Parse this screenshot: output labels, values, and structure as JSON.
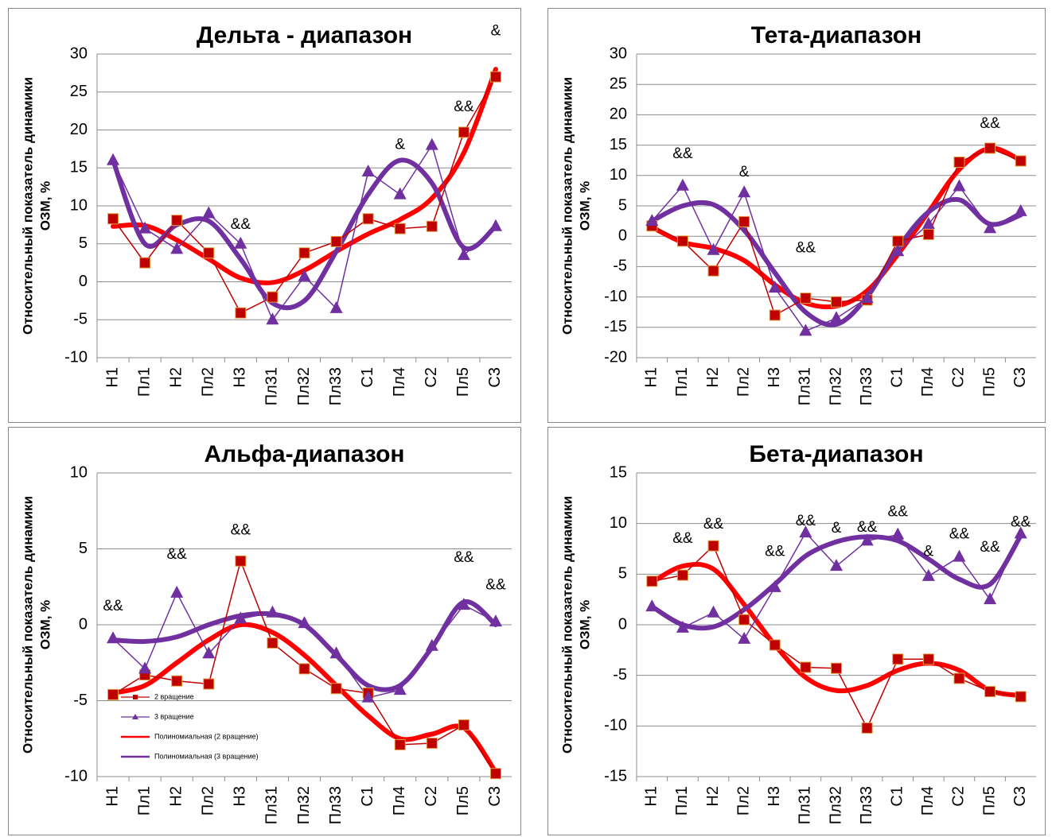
{
  "chart_data": [
    {
      "type": "line",
      "title": "Дельта - диапазон",
      "ylabel": [
        "Относительный показатель динамики",
        "ОЗМ, %"
      ],
      "categories": [
        "Н1",
        "Пл1",
        "Н2",
        "Пл2",
        "Н3",
        "Пл31",
        "Пл32",
        "Пл33",
        "С1",
        "Пл4",
        "С2",
        "Пл5",
        "С3"
      ],
      "ylim": [
        -10,
        30
      ],
      "yticks": [
        -10,
        -5,
        0,
        5,
        10,
        15,
        20,
        25,
        30
      ],
      "grid": true,
      "series": [
        {
          "name": "2 вращение",
          "color": "#c00000",
          "marker": "square",
          "smooth": false,
          "values": [
            8.3,
            2.5,
            8.1,
            3.8,
            -4.1,
            -2,
            3.8,
            5.3,
            8.3,
            7,
            7.3,
            19.7,
            27
          ]
        },
        {
          "name": "3 вращение",
          "color": "#7030a0",
          "marker": "triangle",
          "smooth": false,
          "values": [
            16,
            7,
            4.3,
            9,
            5,
            -5,
            0.7,
            -3.5,
            14.5,
            11.5,
            18,
            3.5,
            7.3
          ]
        },
        {
          "name": "Полиномиальная (2 вращение)",
          "color": "#ff0000",
          "marker": "none",
          "smooth": true,
          "values": [
            7.3,
            7.4,
            5.5,
            3,
            0.5,
            -0.1,
            1.5,
            4,
            6.3,
            8.2,
            11,
            17,
            28
          ]
        },
        {
          "name": "Полиномиальная (3 вращение)",
          "color": "#7030a0",
          "marker": "none",
          "smooth": true,
          "values": [
            16,
            5,
            7.5,
            8,
            3,
            -2.8,
            -2.5,
            4,
            11.5,
            16,
            13,
            4.5,
            7.3
          ]
        }
      ],
      "annotations": [
        {
          "text": "&",
          "category": "С3",
          "y": 33
        },
        {
          "text": "&&",
          "category": "Пл5",
          "y": 23
        },
        {
          "text": "&",
          "category": "Пл4",
          "y": 18
        },
        {
          "text": "&&",
          "category": "Н3",
          "y": 7.5
        }
      ],
      "legend": false
    },
    {
      "type": "line",
      "title": "Тета-диапазон",
      "ylabel": [
        "Относительный показатель динамики",
        "ОЗМ, %"
      ],
      "categories": [
        "Н1",
        "Пл1",
        "Н2",
        "Пл2",
        "Н3",
        "Пл31",
        "Пл32",
        "Пл33",
        "С1",
        "Пл4",
        "С2",
        "Пл5",
        "С3"
      ],
      "ylim": [
        -20,
        30
      ],
      "yticks": [
        -20,
        -15,
        -10,
        -5,
        0,
        5,
        10,
        15,
        20,
        25,
        30
      ],
      "grid": true,
      "series": [
        {
          "name": "2 вращение",
          "color": "#c00000",
          "marker": "square",
          "smooth": false,
          "values": [
            1.7,
            -0.8,
            -5.7,
            2.4,
            -13,
            -10.2,
            -10.8,
            -10.5,
            -0.8,
            0.3,
            12.2,
            14.5,
            12.4
          ]
        },
        {
          "name": "3 вращение",
          "color": "#7030a0",
          "marker": "triangle",
          "smooth": false,
          "values": [
            2.5,
            8.3,
            -2.3,
            7.2,
            -8.5,
            -15.6,
            -13.5,
            -10.2,
            -2.5,
            2,
            8.2,
            1.3,
            4.1
          ]
        },
        {
          "name": "Полиномиальная (2 вращение)",
          "color": "#ff0000",
          "marker": "none",
          "smooth": true,
          "values": [
            1.5,
            -1,
            -2,
            -4,
            -8,
            -11,
            -11.5,
            -9,
            -3,
            4,
            11,
            14.5,
            12.5
          ]
        },
        {
          "name": "Полиномиальная (3 вращение)",
          "color": "#7030a0",
          "marker": "none",
          "smooth": true,
          "values": [
            2.5,
            5,
            5.2,
            1,
            -6,
            -12.5,
            -14.5,
            -10,
            -2,
            4,
            6,
            2,
            3.5
          ]
        }
      ],
      "annotations": [
        {
          "text": "&&",
          "category": "Пл1",
          "y": 13.5
        },
        {
          "text": "&",
          "category": "Пл2",
          "y": 10.5
        },
        {
          "text": "&&",
          "category": "Пл31",
          "y": -2
        },
        {
          "text": "&&",
          "category": "Пл5",
          "y": 18.5
        }
      ],
      "legend": false
    },
    {
      "type": "line",
      "title": "Альфа-диапазон",
      "ylabel": [
        "Относительный показатель динамики",
        "ОЗМ, %"
      ],
      "categories": [
        "Н1",
        "Пл1",
        "Н2",
        "Пл2",
        "Н3",
        "Пл31",
        "Пл32",
        "Пл33",
        "С1",
        "Пл4",
        "С2",
        "Пл5",
        "С3"
      ],
      "ylim": [
        -10,
        10
      ],
      "yticks": [
        -10,
        -5,
        0,
        5,
        10
      ],
      "grid": true,
      "series": [
        {
          "name": "2 вращение",
          "color": "#c00000",
          "marker": "square",
          "smooth": false,
          "values": [
            -4.6,
            -3.3,
            -3.7,
            -3.9,
            4.2,
            -1.2,
            -2.9,
            -4.2,
            -4.5,
            -7.9,
            -7.8,
            -6.6,
            -9.8
          ]
        },
        {
          "name": "3 вращение",
          "color": "#7030a0",
          "marker": "triangle",
          "smooth": false,
          "values": [
            -0.9,
            -2.9,
            2.1,
            -1.9,
            0.4,
            0.8,
            0.1,
            -1.9,
            -4.8,
            -4.3,
            -1.4,
            1.3,
            0.2
          ]
        },
        {
          "name": "Полиномиальная (2 вращение)",
          "color": "#ff0000",
          "marker": "none",
          "smooth": true,
          "values": [
            -4.5,
            -4,
            -2.5,
            -1,
            0,
            -0.5,
            -2,
            -4,
            -6,
            -7.5,
            -7.2,
            -6.8,
            -9.7
          ]
        },
        {
          "name": "Полиномиальная (3 вращение)",
          "color": "#7030a0",
          "marker": "none",
          "smooth": true,
          "values": [
            -1,
            -1.1,
            -0.8,
            0,
            0.6,
            0.7,
            0,
            -2,
            -4,
            -4,
            -1.5,
            1.5,
            0
          ]
        }
      ],
      "annotations": [
        {
          "text": "&&",
          "category": "Н1",
          "y": 1.2
        },
        {
          "text": "&&",
          "category": "Н2",
          "y": 4.6
        },
        {
          "text": "&&",
          "category": "Н3",
          "y": 6.2
        },
        {
          "text": "&&",
          "category": "Пл5",
          "y": 4.4
        },
        {
          "text": "&&",
          "category": "С3",
          "y": 2.6
        }
      ],
      "legend": "lower left"
    },
    {
      "type": "line",
      "title": "Бета-диапазон",
      "ylabel": [
        "Относительный показатель динамики",
        "ОЗМ, %"
      ],
      "categories": [
        "Н1",
        "Пл1",
        "Н2",
        "Пл2",
        "Н3",
        "Пл31",
        "Пл32",
        "Пл33",
        "С1",
        "Пл4",
        "С2",
        "Пл5",
        "С3"
      ],
      "ylim": [
        -15,
        15
      ],
      "yticks": [
        -15,
        -10,
        -5,
        0,
        5,
        10,
        15
      ],
      "grid": true,
      "series": [
        {
          "name": "2 вращение",
          "color": "#c00000",
          "marker": "square",
          "smooth": false,
          "values": [
            4.3,
            4.9,
            7.8,
            0.5,
            -2,
            -4.2,
            -4.3,
            -10.2,
            -3.4,
            -3.4,
            -5.3,
            -6.6,
            -7.1
          ]
        },
        {
          "name": "3 вращение",
          "color": "#7030a0",
          "marker": "triangle",
          "smooth": false,
          "values": [
            1.8,
            -0.3,
            1.2,
            -1.4,
            3.7,
            9.1,
            5.8,
            8.3,
            8.9,
            4.8,
            6.7,
            2.5,
            9
          ]
        },
        {
          "name": "Полиномиальная (2 вращение)",
          "color": "#ff0000",
          "marker": "none",
          "smooth": true,
          "values": [
            4.2,
            5.8,
            5.5,
            2,
            -2,
            -5.2,
            -6.5,
            -6,
            -4.5,
            -3.8,
            -4.5,
            -6.5,
            -7
          ]
        },
        {
          "name": "Полиномиальная (3 вращение)",
          "color": "#7030a0",
          "marker": "none",
          "smooth": true,
          "values": [
            1.8,
            0,
            -0.2,
            1.5,
            4,
            6.8,
            8.2,
            8.7,
            8.3,
            6.5,
            4.5,
            4,
            8.8
          ]
        }
      ],
      "annotations": [
        {
          "text": "&&",
          "category": "Пл1",
          "y": 8.5
        },
        {
          "text": "&&",
          "category": "Н2",
          "y": 9.9
        },
        {
          "text": "&&",
          "category": "Н3",
          "y": 7.2
        },
        {
          "text": "&&",
          "category": "Пл31",
          "y": 10.2
        },
        {
          "text": "&",
          "category": "Пл32",
          "y": 9.5
        },
        {
          "text": "&&",
          "category": "Пл33",
          "y": 9.6
        },
        {
          "text": "&&",
          "category": "С1",
          "y": 11.1
        },
        {
          "text": "&",
          "category": "Пл4",
          "y": 7.2
        },
        {
          "text": "&&",
          "category": "С2",
          "y": 8.9
        },
        {
          "text": "&&",
          "category": "Пл5",
          "y": 7.6
        },
        {
          "text": "&&",
          "category": "С3",
          "y": 10.1
        }
      ],
      "legend": false
    }
  ]
}
